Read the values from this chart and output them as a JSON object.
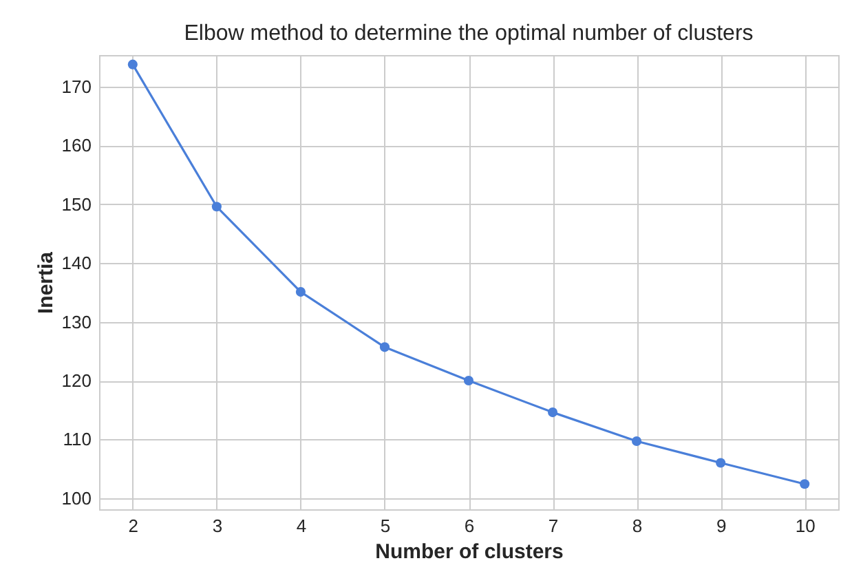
{
  "chart_data": {
    "type": "line",
    "title": "Elbow method to determine the optimal number of clusters",
    "xlabel": "Number of clusters",
    "ylabel": "Inertia",
    "x": [
      2,
      3,
      4,
      5,
      6,
      7,
      8,
      9,
      10
    ],
    "series": [
      {
        "color": "#4a7fd9",
        "values": [
          173.8,
          149.6,
          135.1,
          125.7,
          120.0,
          114.6,
          109.7,
          106.0,
          102.4
        ]
      }
    ],
    "xlim": [
      1.6,
      10.4
    ],
    "xticks": [
      2,
      3,
      4,
      5,
      6,
      7,
      8,
      9,
      10
    ],
    "ylim": [
      98.1,
      175.4
    ],
    "yticks": [
      100,
      110,
      120,
      130,
      140,
      150,
      160,
      170
    ],
    "grid": true,
    "marker": "circle",
    "line_style": "solid"
  }
}
